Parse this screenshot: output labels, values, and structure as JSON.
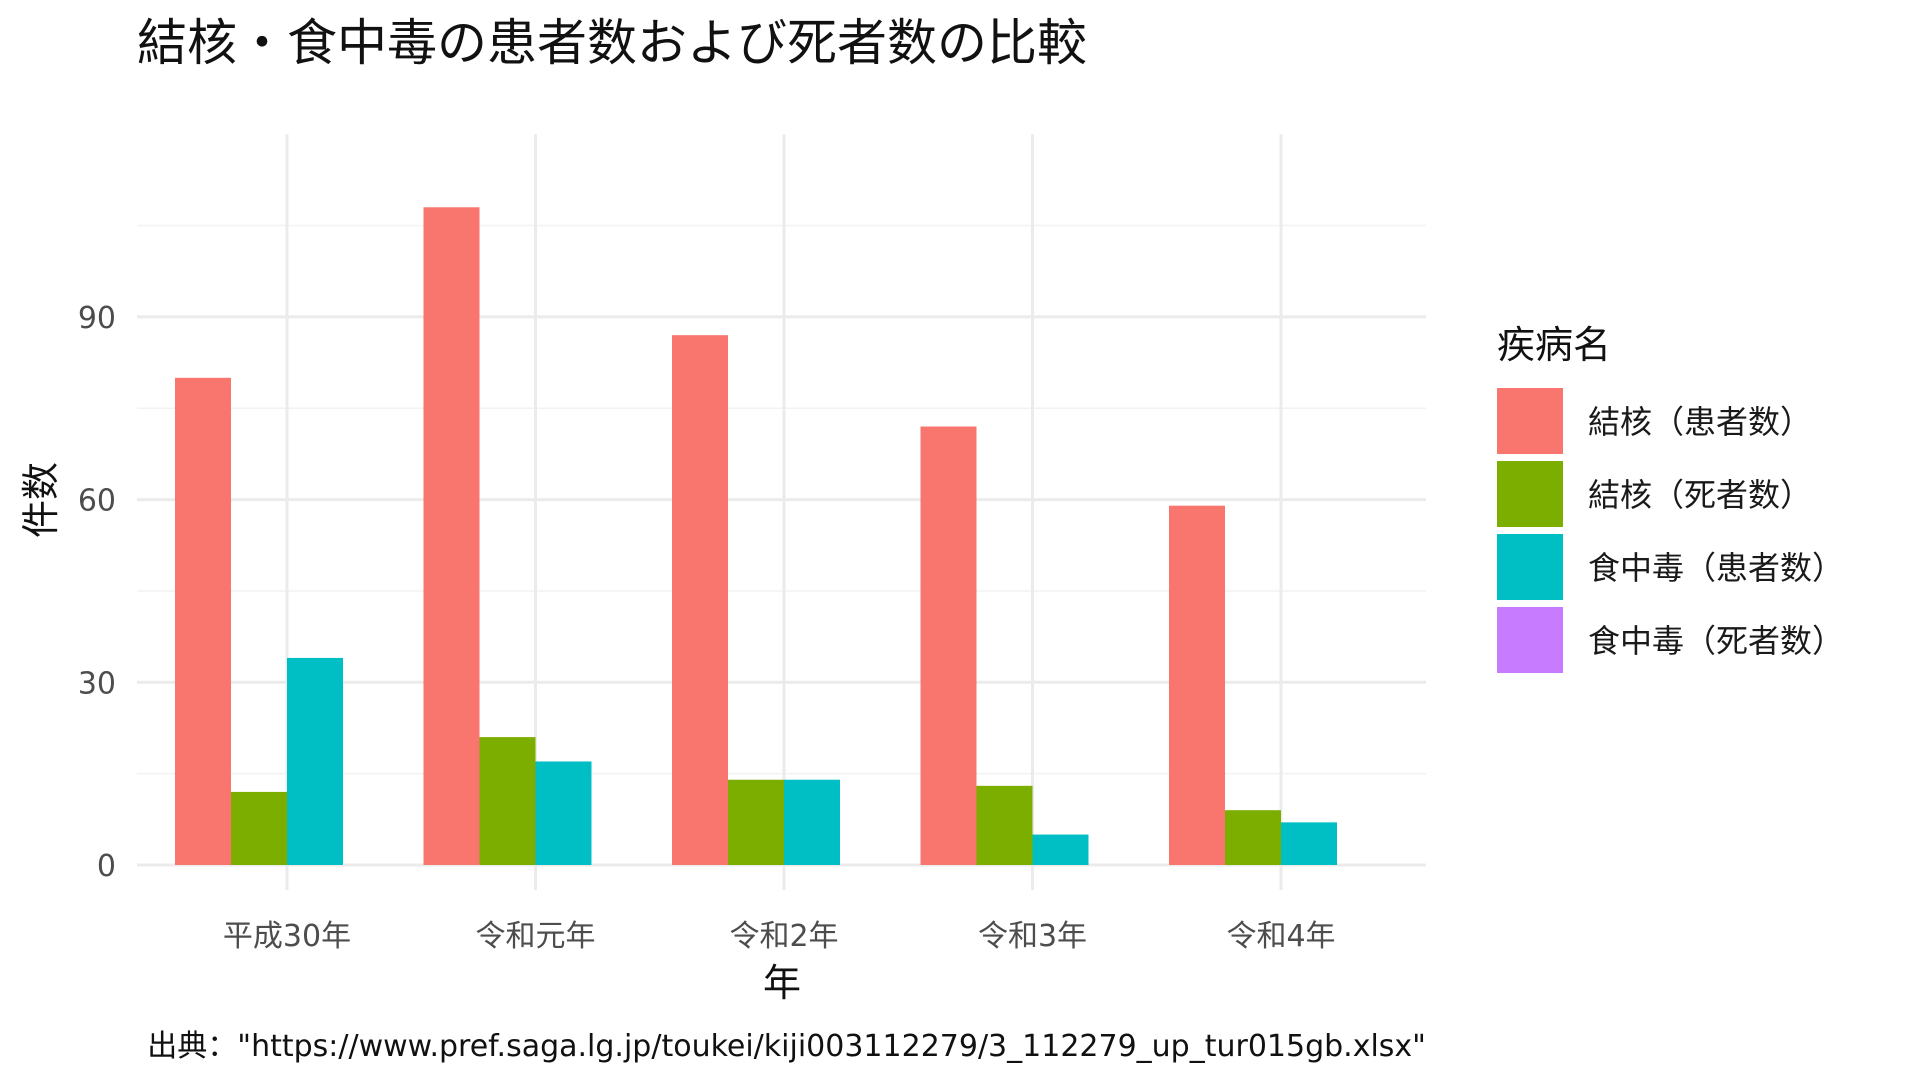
{
  "chart_data": {
    "type": "bar",
    "title": "結核・食中毒の患者数および死者数の比較",
    "xlabel": "年",
    "ylabel": "件数",
    "caption": "出典：\"https://www.pref.saga.lg.jp/toukei/kiji003112279/3_112279_up_tur015gb.xlsx\"",
    "categories": [
      "平成30年",
      "令和元年",
      "令和2年",
      "令和3年",
      "令和4年"
    ],
    "ylim": [
      0,
      120
    ],
    "yticks": [
      0,
      30,
      60,
      90
    ],
    "y_tick_labels": [
      "0",
      "30",
      "60",
      "90"
    ],
    "grid": true,
    "legend": {
      "title": "疾病名",
      "placement": "right"
    },
    "series": [
      {
        "name": "結核（患者数）",
        "color": "#F8766D",
        "values": [
          80,
          108,
          87,
          72,
          59
        ]
      },
      {
        "name": "結核（死者数）",
        "color": "#7CAE00",
        "values": [
          12,
          21,
          14,
          13,
          9
        ]
      },
      {
        "name": "食中毒（患者数）",
        "color": "#00BFC4",
        "values": [
          34,
          17,
          14,
          5,
          7
        ]
      },
      {
        "name": "食中毒（死者数）",
        "color": "#C77CFF",
        "values": [
          0,
          0,
          0,
          0,
          0
        ]
      }
    ]
  }
}
